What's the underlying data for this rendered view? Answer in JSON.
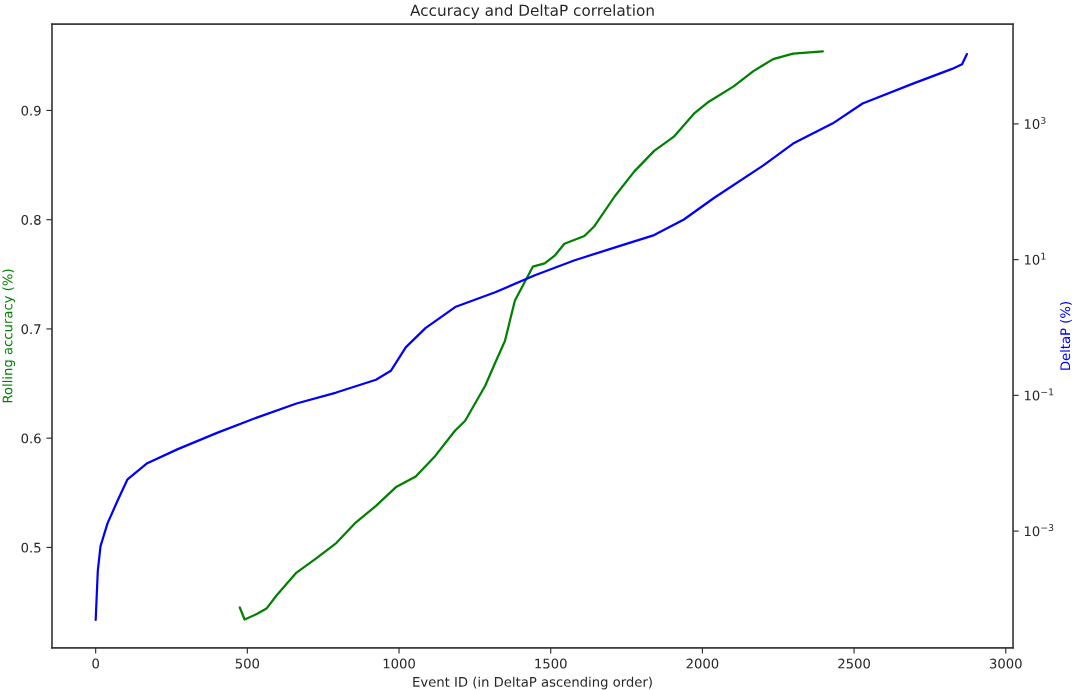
{
  "chart_data": {
    "type": "line",
    "title": "Accuracy and DeltaP correlation",
    "xlabel": "Event ID (in DeltaP ascending order)",
    "ylabel": "Rolling accuracy (%)",
    "y2label": "DeltaP (%)",
    "series": [
      {
        "color": "#008000",
        "x": [
          475,
          491,
          531,
          563,
          596,
          662,
          727,
          793,
          858,
          924,
          989,
          1055,
          1120,
          1185,
          1218,
          1284,
          1317,
          1349,
          1382,
          1441,
          1480,
          1513,
          1545,
          1611,
          1644,
          1710,
          1775,
          1841,
          1906,
          1972,
          2021,
          2103,
          2168,
          2233,
          2299,
          2397
        ],
        "values": [
          0.445,
          0.434,
          0.439,
          0.444,
          0.456,
          0.477,
          0.49,
          0.504,
          0.523,
          0.538,
          0.555,
          0.565,
          0.584,
          0.607,
          0.616,
          0.648,
          0.669,
          0.689,
          0.726,
          0.757,
          0.76,
          0.767,
          0.778,
          0.785,
          0.794,
          0.821,
          0.844,
          0.863,
          0.876,
          0.897,
          0.908,
          0.922,
          0.936,
          0.947,
          0.952,
          0.954
        ]
      },
      {
        "color": "#0000ff",
        "axis": "y2",
        "x": [
          0,
          7,
          16,
          39,
          72,
          105,
          170,
          269,
          400,
          531,
          662,
          793,
          924,
          973,
          1022,
          1087,
          1185,
          1317,
          1448,
          1579,
          1710,
          1841,
          1939,
          2038,
          2201,
          2299,
          2430,
          2528,
          2692,
          2823,
          2856,
          2872
        ],
        "values": [
          4.9e-05,
          0.00026,
          0.0006,
          0.0013,
          0.0028,
          0.0058,
          0.01,
          0.016,
          0.028,
          0.047,
          0.076,
          0.11,
          0.17,
          0.23,
          0.51,
          0.98,
          2.0,
          3.3,
          5.9,
          9.8,
          15,
          23,
          39,
          81,
          245,
          513,
          1020,
          2000,
          3890,
          6460,
          7590,
          10700
        ]
      }
    ],
    "xlim": [
      -144,
      3024
    ],
    "xticks": [
      0,
      500,
      1000,
      1500,
      2000,
      2500,
      3000
    ],
    "ylim": [
      0.408,
      0.979
    ],
    "yticks": [
      0.5,
      0.6,
      0.7,
      0.8,
      0.9
    ],
    "log": "y2",
    "y2lim": [
      1.9e-05,
      29500.0
    ],
    "y2ticks": [
      {
        "value": 0.001,
        "label": "10$^{−3}$"
      },
      {
        "value": 0.1,
        "label": "10$^{−1}$"
      },
      {
        "value": 10,
        "label": "10$^{1}$"
      },
      {
        "value": 1000,
        "label": "10$^{3}$"
      }
    ],
    "grid": false
  }
}
